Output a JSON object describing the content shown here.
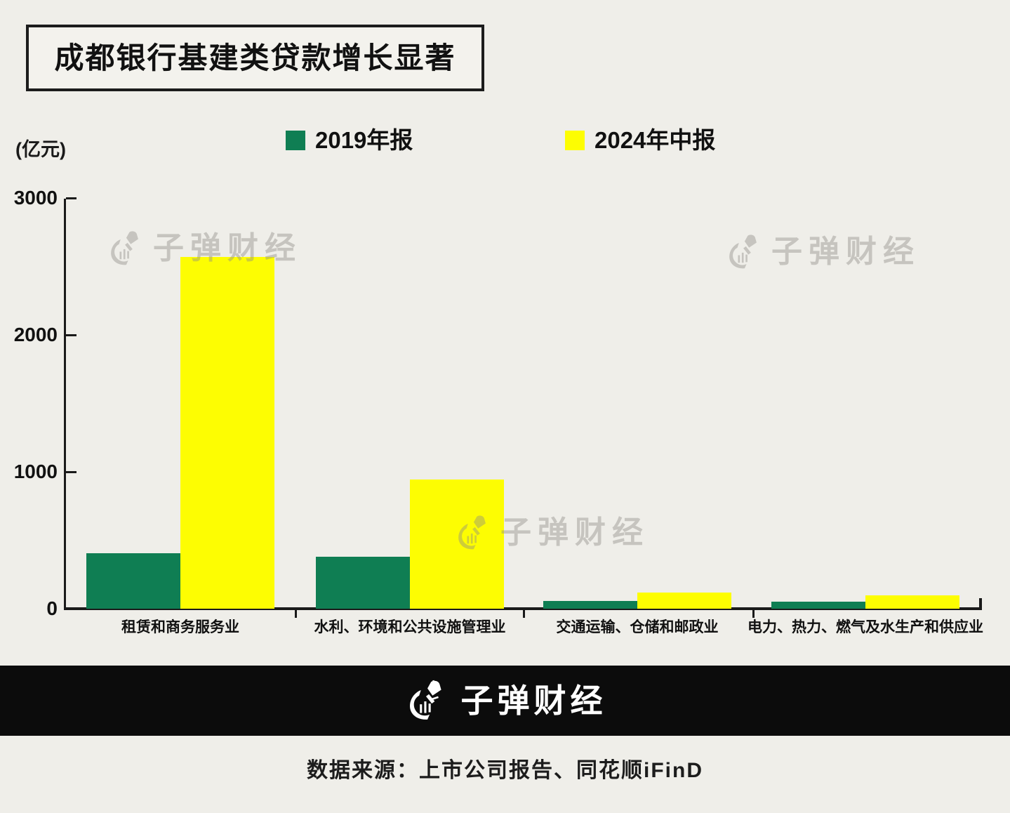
{
  "page": {
    "background": "#EFEEE9"
  },
  "header": {
    "title": "成都银行基建类贷款增长显著"
  },
  "legend": {
    "items": [
      {
        "label": "2019年报",
        "color": "#0F7E53"
      },
      {
        "label": "2024年中报",
        "color": "#FDFD02"
      }
    ]
  },
  "axis": {
    "unit_label": "(亿元)"
  },
  "watermark": {
    "text": "子弹财经"
  },
  "footer": {
    "brand": "子弹财经",
    "source": "数据来源：上市公司报告、同花顺iFinD"
  },
  "chart_data": {
    "type": "bar",
    "title": "成都银行基建类贷款增长显著",
    "ylabel": "(亿元)",
    "ylim": [
      0,
      3000
    ],
    "yticks": [
      0,
      1000,
      2000,
      3000
    ],
    "grid": false,
    "legend_position": "top",
    "categories": [
      "租赁和商务服务业",
      "水利、环境和公共设施管理业",
      "交通运输、仓储和邮政业",
      "电力、热力、燃气及水生产和供应业"
    ],
    "series": [
      {
        "name": "2019年报",
        "color": "#0F7E53",
        "values": [
          405,
          380,
          55,
          50
        ]
      },
      {
        "name": "2024年中报",
        "color": "#FDFD02",
        "values": [
          2570,
          945,
          120,
          95
        ]
      }
    ]
  }
}
